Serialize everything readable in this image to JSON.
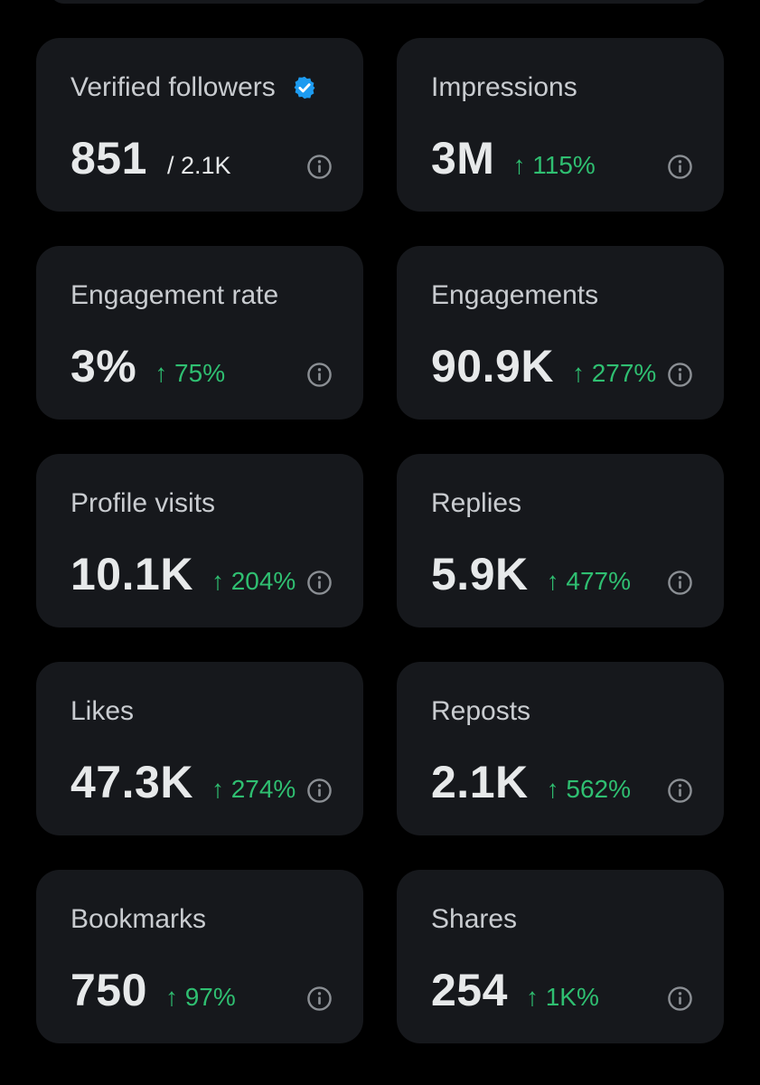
{
  "colors": {
    "background": "#000000",
    "card": "#16181c",
    "label": "#c9ccd0",
    "value": "#e7e9ea",
    "positive_change": "#2fbf71",
    "verified_badge": "#1d9bf0",
    "info_icon": "#8b8f94"
  },
  "metrics": [
    {
      "label": "Verified followers",
      "value": "851",
      "total": "/ 2.1K",
      "change": "",
      "badge": "verified-badge-icon",
      "icon": "info-icon"
    },
    {
      "label": "Impressions",
      "value": "3M",
      "total": "",
      "change": "↑ 115%",
      "icon": "info-icon"
    },
    {
      "label": "Engagement rate",
      "value": "3%",
      "total": "",
      "change": "↑ 75%",
      "icon": "info-icon"
    },
    {
      "label": "Engagements",
      "value": "90.9K",
      "total": "",
      "change": "↑ 277%",
      "icon": "info-icon"
    },
    {
      "label": "Profile visits",
      "value": "10.1K",
      "total": "",
      "change": "↑ 204%",
      "icon": "info-icon"
    },
    {
      "label": "Replies",
      "value": "5.9K",
      "total": "",
      "change": "↑ 477%",
      "icon": "info-icon"
    },
    {
      "label": "Likes",
      "value": "47.3K",
      "total": "",
      "change": "↑ 274%",
      "icon": "info-icon"
    },
    {
      "label": "Reposts",
      "value": "2.1K",
      "total": "",
      "change": "↑ 562%",
      "icon": "info-icon"
    },
    {
      "label": "Bookmarks",
      "value": "750",
      "total": "",
      "change": "↑ 97%",
      "icon": "info-icon"
    },
    {
      "label": "Shares",
      "value": "254",
      "total": "",
      "change": "↑ 1K%",
      "icon": "info-icon"
    }
  ]
}
